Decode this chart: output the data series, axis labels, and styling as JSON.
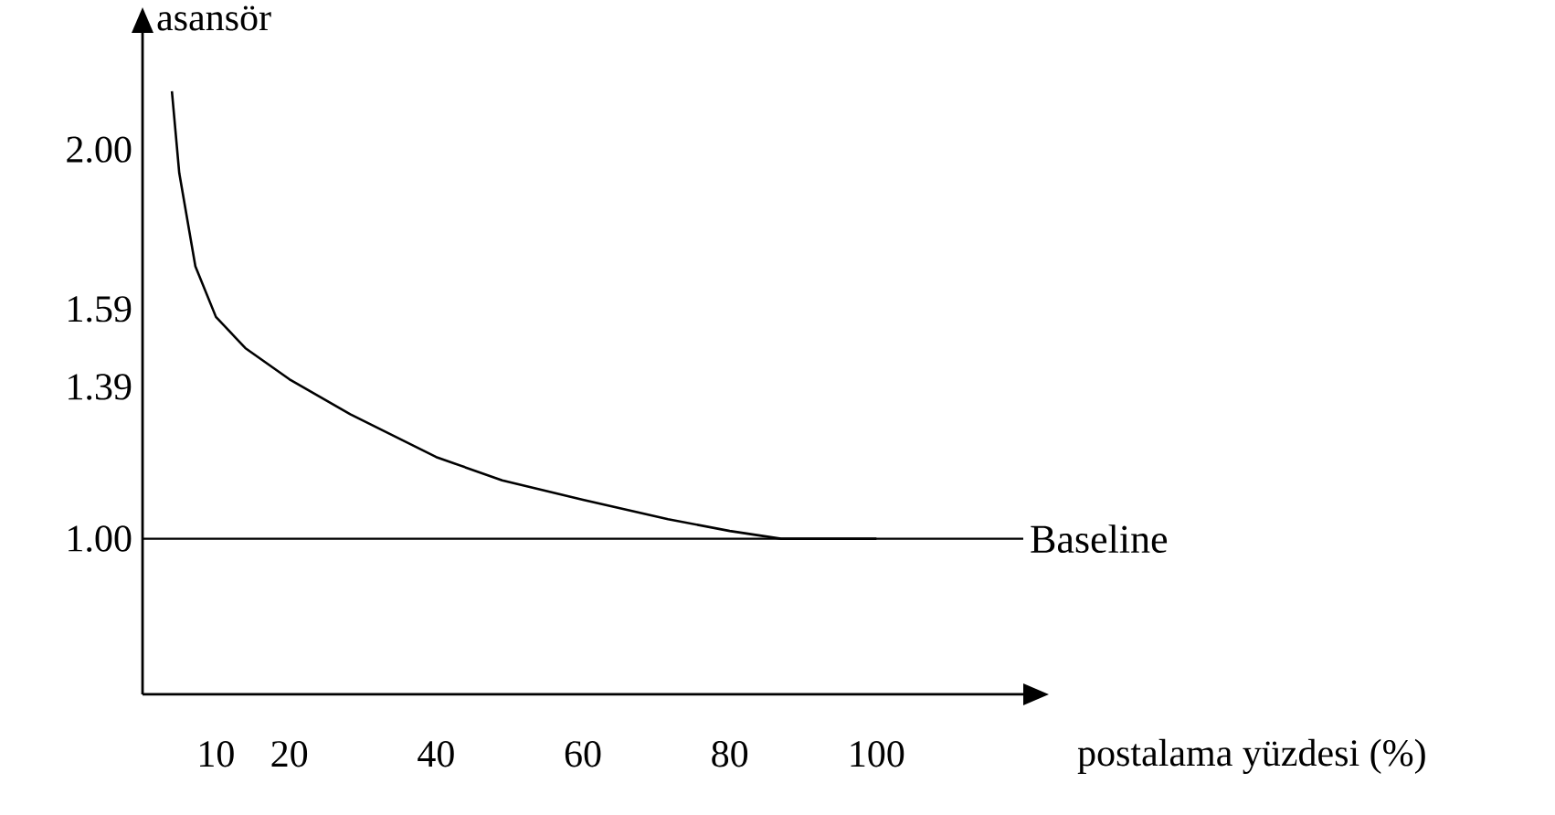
{
  "chart_data": {
    "type": "line",
    "xlabel": "postalama yüzdesi (%)",
    "ylabel": "asansör",
    "x": [
      4,
      5,
      7.2,
      10,
      14,
      20,
      28.3,
      40,
      49,
      60,
      71.6,
      80,
      87,
      100
    ],
    "series": [
      {
        "color": "#000000",
        "values": [
          2.15,
          1.94,
          1.7,
          1.57,
          1.49,
          1.41,
          1.32,
          1.21,
          1.15,
          1.1,
          1.05,
          1.02,
          1.0,
          1.0
        ]
      }
    ],
    "xlim": [
      0,
      120
    ],
    "ylim": [
      0.6,
      2.3
    ],
    "xticks": [
      10,
      20,
      40,
      60,
      80,
      100
    ],
    "yticks": [
      {
        "value": 2,
        "label": "2.00"
      },
      {
        "value": 1.59,
        "label": "1.59"
      },
      {
        "value": 1.39,
        "label": "1.39"
      },
      {
        "value": 1,
        "label": "1.00"
      }
    ],
    "ref_lines": [
      {
        "axis": "y",
        "value": 1,
        "label": "Baseline",
        "color": "#000000"
      }
    ],
    "grid": false,
    "marker": "none",
    "line_style": "solid"
  }
}
